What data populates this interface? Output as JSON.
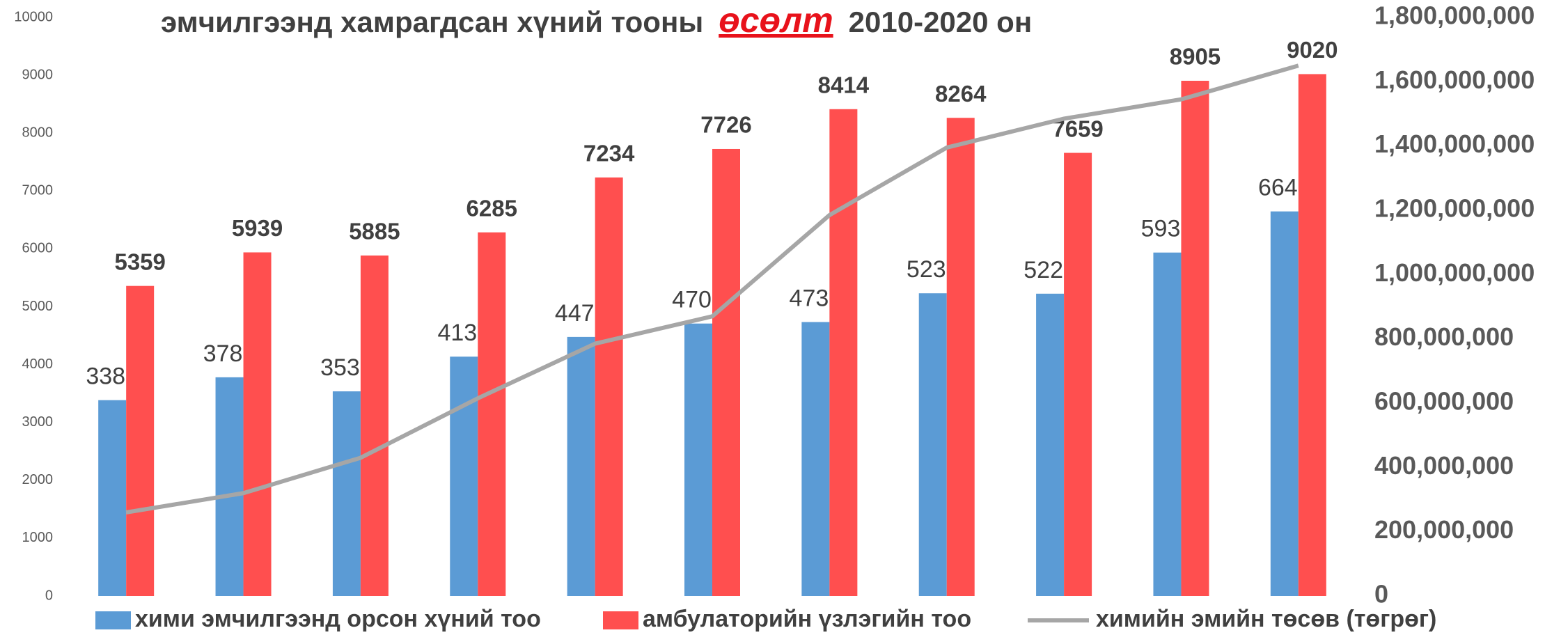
{
  "chart_data": {
    "type": "bar",
    "title": [
      "эмчилгээнд хамрагдсан хүний тооны",
      "өсөлт",
      "2010-2020 он"
    ],
    "categories": [
      null,
      null,
      null,
      null,
      null,
      null,
      null,
      null,
      null,
      null,
      null
    ],
    "series": [
      {
        "name": "хими эмчилгээнд орсон хүний тоо",
        "color": "#5b9bd5",
        "values": [
          3385,
          3780,
          3537,
          4137,
          4478,
          4709,
          4735,
          5232,
          5225,
          5936,
          6647
        ]
      },
      {
        "name": "амбулаторийн үзлэгийн тоо",
        "color": "#ff4f4f",
        "values": [
          5359,
          5939,
          5885,
          6285,
          7234,
          7726,
          8414,
          8264,
          7659,
          8905,
          9020
        ]
      },
      {
        "name": "химийн эмийн төсөв (төгрөг)",
        "color": "#a6a6a6",
        "type": "line",
        "axis": "y2",
        "values": [
          260000000,
          320000000,
          430000000,
          615000000,
          785000000,
          870000000,
          1185000000,
          1395000000,
          1485000000,
          1545000000,
          1650000000
        ]
      }
    ],
    "ylim": [
      0,
      10000
    ],
    "yticks": [
      0,
      1000,
      2000,
      3000,
      4000,
      5000,
      6000,
      7000,
      8000,
      9000,
      10000
    ],
    "y2lim": [
      0,
      1800000000
    ],
    "y2ticks": [
      0,
      {
        "value": 200000000,
        "label": "200,000,000"
      },
      {
        "value": 400000000,
        "label": "400,000,000"
      },
      {
        "value": 600000000,
        "label": "600,000,000"
      },
      {
        "value": 800000000,
        "label": "800,000,000"
      },
      {
        "value": 1000000000,
        "label": "1,000,000,000"
      },
      {
        "value": 1200000000,
        "label": "1,200,000,000"
      },
      {
        "value": 1400000000,
        "label": "1,400,000,000"
      },
      {
        "value": 1600000000,
        "label": "1,600,000,000"
      },
      {
        "value": 1800000000,
        "label": "1,800,000,000"
      }
    ],
    "grid": false,
    "legend": "bottom"
  }
}
